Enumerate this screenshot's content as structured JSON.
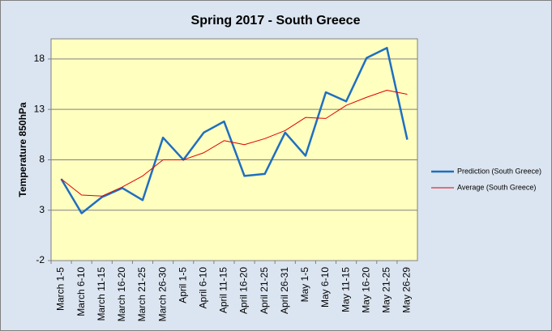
{
  "chart_data": {
    "type": "line",
    "title": "Spring 2017 - South Greece",
    "y_label": "Temperature 850hPa",
    "categories": [
      "March 1-5",
      "March 6-10",
      "March 11-15",
      "March 16-20",
      "March 21-25",
      "March 26-30",
      "April 1-5",
      "April 6-10",
      "April 11-15",
      "April 16-20",
      "April 21-25",
      "April 26-31",
      "May 1-5",
      "May 6-10",
      "May 11-15",
      "May 16-20",
      "May 21-25",
      "May 26-29"
    ],
    "series": [
      {
        "name": "Prediction (South Greece)",
        "color": "#1f6fc0",
        "width": 2.5,
        "values": [
          6.1,
          2.7,
          4.3,
          5.2,
          4.0,
          10.2,
          8.0,
          10.7,
          11.8,
          6.4,
          6.6,
          10.7,
          8.4,
          14.7,
          13.8,
          18.1,
          19.1,
          10.0
        ]
      },
      {
        "name": "Average (South Greece)",
        "color": "#e00000",
        "width": 1,
        "values": [
          6.1,
          4.5,
          4.4,
          5.3,
          6.4,
          8.0,
          8.0,
          8.7,
          9.9,
          9.5,
          10.1,
          10.9,
          12.2,
          12.1,
          13.4,
          14.2,
          14.9,
          14.5
        ]
      }
    ],
    "ylim": [
      -2,
      20
    ],
    "yticks": [
      -2,
      3,
      8,
      13,
      18
    ],
    "grid": true,
    "legend": "right"
  }
}
